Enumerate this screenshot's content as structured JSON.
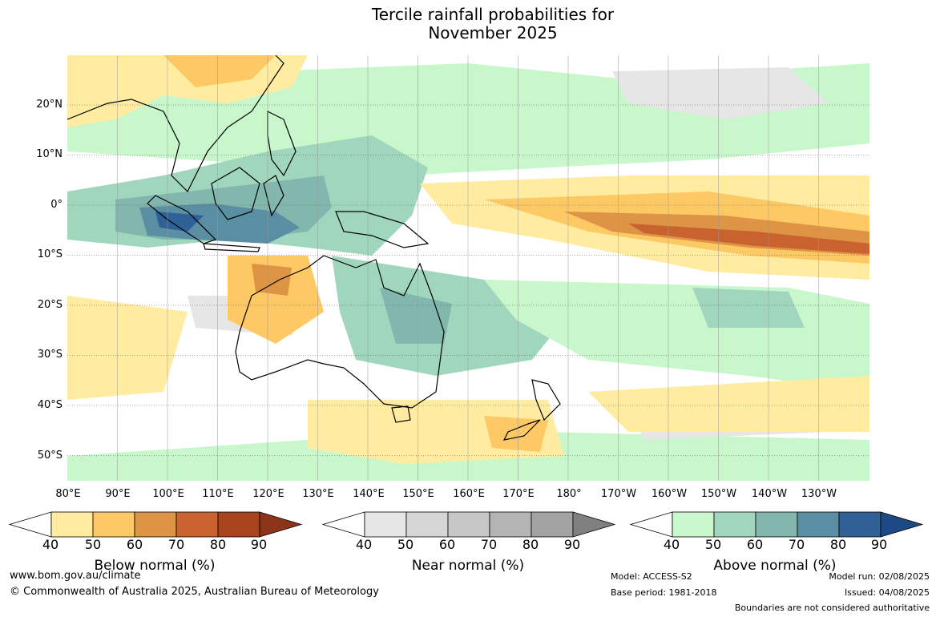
{
  "title_line1": "Tercile rainfall probabilities for",
  "title_line2": "November 2025",
  "lat_ticks": [
    "20°N",
    "10°N",
    "0°",
    "10°S",
    "20°S",
    "30°S",
    "40°S",
    "50°S"
  ],
  "lon_ticks": [
    "80°E",
    "90°E",
    "100°E",
    "110°E",
    "120°E",
    "130°E",
    "140°E",
    "150°E",
    "160°E",
    "170°E",
    "180°",
    "170°W",
    "160°W",
    "150°W",
    "140°W",
    "130°W"
  ],
  "legends": [
    {
      "title": "Below normal (%)",
      "values": [
        "40",
        "50",
        "60",
        "70",
        "80",
        "90"
      ],
      "colors": [
        "#ffffff",
        "#ffeca0",
        "#fdc964",
        "#dd9445",
        "#c8622f",
        "#a7441e",
        "#8c3418"
      ]
    },
    {
      "title": "Near normal (%)",
      "values": [
        "40",
        "50",
        "60",
        "70",
        "80",
        "90"
      ],
      "colors": [
        "#ffffff",
        "#e6e6e6",
        "#d6d6d6",
        "#c7c7c7",
        "#b4b4b4",
        "#a2a2a2",
        "#808080"
      ]
    },
    {
      "title": "Above normal (%)",
      "values": [
        "40",
        "50",
        "60",
        "70",
        "80",
        "90"
      ],
      "colors": [
        "#ffffff",
        "#c8f7cc",
        "#a0d6bd",
        "#82b7ae",
        "#5a8ea2",
        "#2f6096",
        "#1d4a85"
      ]
    }
  ],
  "footer": {
    "url": "www.bom.gov.au/climate",
    "copyright": "© Commonwealth of Australia 2025, Australian Bureau of Meteorology",
    "model": "Model: ACCESS-S2",
    "base_period": "Base period: 1981-2018",
    "model_run": "Model run: 02/08/2025",
    "issued": "Issued: 04/08/2025",
    "disclaimer": "Boundaries are not considered authoritative"
  },
  "map_colors": {
    "ocean": "#ffffff",
    "below_light": "#ffeca0",
    "below_mid": "#fdc964",
    "below_dark": "#dd9445",
    "below_strong": "#c8622f",
    "below_max": "#a7441e",
    "above_light": "#c8f7cc",
    "above_mid": "#a0d6bd",
    "above_dark": "#82b7ae",
    "above_strong": "#5a8ea2",
    "above_max": "#2f6096",
    "near_light": "#e6e6e6"
  }
}
